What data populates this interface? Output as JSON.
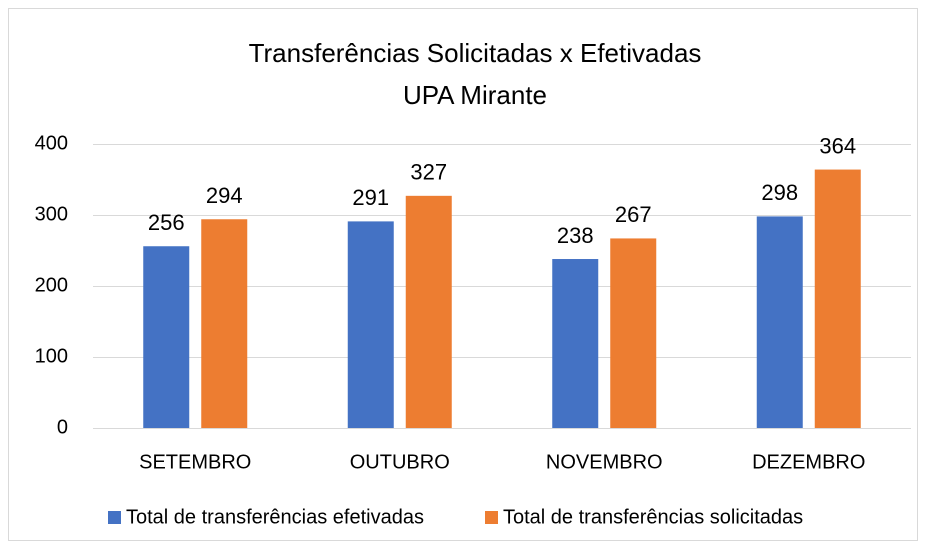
{
  "chart_data": {
    "type": "bar",
    "title": "Transferências Solicitadas x Efetivadas",
    "subtitle": "UPA Mirante",
    "categories": [
      "SETEMBRO",
      "OUTUBRO",
      "NOVEMBRO",
      "DEZEMBRO"
    ],
    "series": [
      {
        "name": "Total de transferências efetivadas",
        "color": "#4472c4",
        "values": [
          256,
          291,
          238,
          298
        ]
      },
      {
        "name": "Total de transferências solicitadas",
        "color": "#ed7d31",
        "values": [
          294,
          327,
          267,
          364
        ]
      }
    ],
    "ylim": [
      0,
      400
    ],
    "yticks": [
      0,
      100,
      200,
      300,
      400
    ],
    "grid": true,
    "legend": "bottom"
  }
}
